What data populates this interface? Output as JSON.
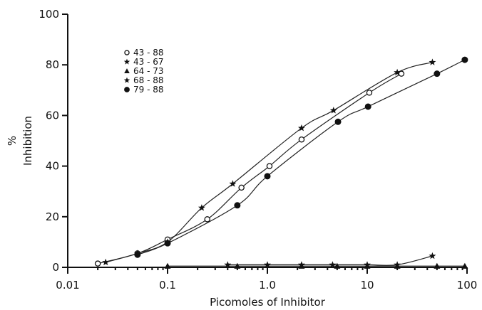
{
  "chart_data": {
    "type": "line",
    "xlabel": "Picomoles of Inhibitor",
    "ylabel": [
      "%",
      "Inhibition"
    ],
    "xscale": "log",
    "xlim": [
      0.01,
      100
    ],
    "ylim": [
      0,
      100
    ],
    "x_ticks": [
      0.01,
      0.1,
      1.0,
      10,
      100
    ],
    "x_tick_labels": [
      "0.01",
      "0.1",
      "1.0",
      "10",
      "100"
    ],
    "y_ticks": [
      0,
      20,
      40,
      60,
      80,
      100
    ],
    "y_tick_labels": [
      "0",
      "20",
      "40",
      "60",
      "80",
      "100"
    ],
    "grid": false,
    "legend_position": "upper-left",
    "series": [
      {
        "name": "43 - 88",
        "marker": "open-circle",
        "x": [
          0.02,
          0.05,
          0.1,
          0.25,
          0.55,
          1.05,
          2.2,
          10.5,
          22
        ],
        "y": [
          1.5,
          5.5,
          11,
          19,
          31.5,
          40,
          50.5,
          69,
          76.5
        ]
      },
      {
        "name": "43 - 67",
        "marker": "star",
        "x": [
          0.024,
          0.05,
          0.1,
          0.22,
          0.45,
          2.2,
          4.6,
          20,
          45
        ],
        "y": [
          2,
          5.5,
          10,
          23.5,
          33,
          55,
          62,
          77,
          81
        ]
      },
      {
        "name": "64 - 73",
        "marker": "filled-triangle",
        "x": [
          0.1,
          0.5,
          2.2,
          5,
          10,
          20,
          50,
          95
        ],
        "y": [
          0.5,
          0.5,
          0.5,
          0.5,
          0.5,
          0.5,
          0.5,
          0.5
        ]
      },
      {
        "name": "68 - 88",
        "marker": "star",
        "x": [
          0.4,
          1.0,
          2.2,
          4.5,
          10,
          20,
          45
        ],
        "y": [
          1,
          1,
          1,
          1,
          1,
          1,
          4.5
        ]
      },
      {
        "name": "79 - 88",
        "marker": "filled-circle",
        "x": [
          0.05,
          0.1,
          0.5,
          1.0,
          5.1,
          10.2,
          50,
          95
        ],
        "y": [
          5,
          9.5,
          24.5,
          36,
          57.5,
          63.5,
          76.5,
          82
        ]
      }
    ]
  }
}
